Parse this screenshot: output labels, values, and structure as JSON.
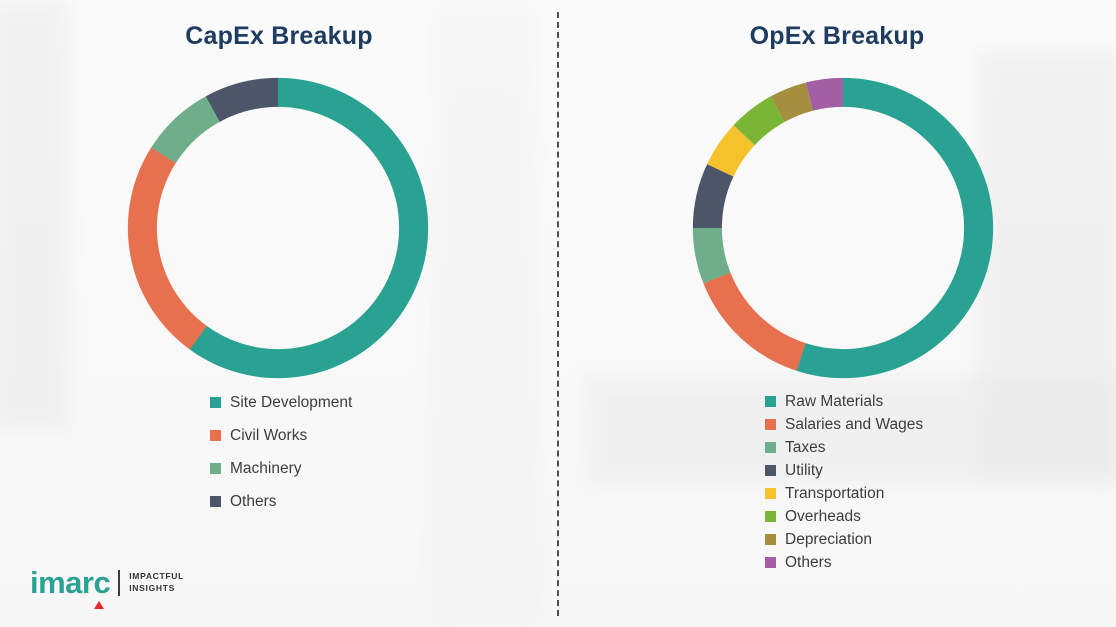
{
  "chart_data": [
    {
      "type": "pie",
      "subtype": "donut",
      "title": "CapEx Breakup",
      "labels": [
        "Site Development",
        "Civil Works",
        "Machinery",
        "Others"
      ],
      "values": [
        60,
        24,
        8,
        8
      ],
      "colors": [
        "#29a294",
        "#e7704e",
        "#6fae8b",
        "#4d5568"
      ],
      "legend_position": "bottom",
      "title_color": "#1e3b62"
    },
    {
      "type": "pie",
      "subtype": "donut",
      "title": "OpEx Breakup",
      "labels": [
        "Raw Materials",
        "Salaries and Wages",
        "Taxes",
        "Utility",
        "Transportation",
        "Overheads",
        "Depreciation",
        "Others"
      ],
      "values": [
        55,
        14,
        6,
        7,
        5,
        5,
        4,
        4
      ],
      "colors": [
        "#29a294",
        "#e7704e",
        "#6fae8b",
        "#4d5568",
        "#f6c22b",
        "#7ab535",
        "#a58e3e",
        "#a25fa3"
      ],
      "legend_position": "bottom",
      "title_color": "#1e3b62"
    }
  ],
  "logo": {
    "name": "imarc",
    "tagline": [
      "IMPACTFUL",
      "INSIGHTS"
    ],
    "brand_color": "#29a294",
    "accent_color": "#e8262d"
  }
}
